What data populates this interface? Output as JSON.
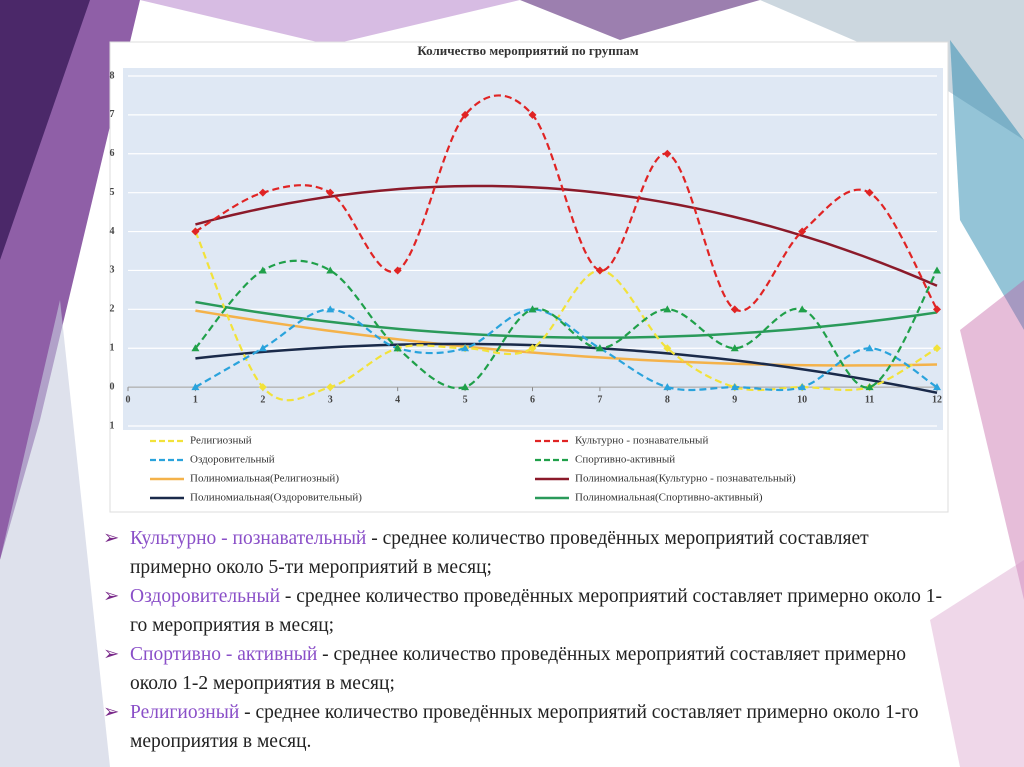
{
  "chart_data": {
    "type": "line",
    "title": "Количество мероприятий по группам",
    "x": [
      1,
      2,
      3,
      4,
      5,
      6,
      7,
      8,
      9,
      10,
      11,
      12
    ],
    "xlim": [
      0,
      12
    ],
    "xticks": [
      0,
      1,
      2,
      3,
      4,
      5,
      6,
      7,
      8,
      9,
      10,
      11,
      12
    ],
    "ylim": [
      -1,
      8
    ],
    "yticks": [
      {
        "value": -1,
        "label": "1"
      },
      0,
      1,
      2,
      3,
      4,
      5,
      6,
      7,
      8
    ],
    "grid": true,
    "legend": "bottom",
    "series": [
      {
        "name": "Религиозный",
        "color": "#f2e23a",
        "marker": "diamond",
        "values": [
          4,
          0,
          0,
          1,
          1,
          1,
          3,
          1,
          0,
          0,
          0,
          1
        ],
        "trendline": {
          "name": "Полиномиальная(Религиозный)",
          "color": "#f4b24a"
        }
      },
      {
        "name": "Культурно - познавательный",
        "color": "#e02424",
        "marker": "diamond",
        "values": [
          4,
          5,
          5,
          3,
          7,
          7,
          3,
          6,
          2,
          4,
          5,
          2
        ],
        "trendline": {
          "name": "Полиномиальная(Культурно - познавательный)",
          "color": "#8b1a2a"
        }
      },
      {
        "name": "Оздоровительный",
        "color": "#2aa3dc",
        "marker": "triangle",
        "values": [
          0,
          1,
          2,
          1,
          1,
          2,
          1,
          0,
          0,
          0,
          1,
          0
        ],
        "trendline": {
          "name": "Полиномиальная(Оздоровительный)",
          "color": "#1a2a4a"
        }
      },
      {
        "name": "Спортивно-активный",
        "color": "#20a04a",
        "marker": "triangle",
        "values": [
          1,
          3,
          3,
          1,
          0,
          2,
          1,
          2,
          1,
          2,
          0,
          3
        ],
        "trendline": {
          "name": "Полиномиальная(Спортивно-активный)",
          "color": "#2a9a5a"
        }
      }
    ]
  },
  "bullets": [
    {
      "name": "Культурно - познавательный",
      "text": " - среднее количество проведённых мероприятий составляет примерно около 5-ти мероприятий в месяц;"
    },
    {
      "name": "Оздоровительный",
      "text": " - среднее количество проведённых мероприятий составляет примерно около 1-го мероприятия в месяц;"
    },
    {
      "name": "Спортивно - активный",
      "text": " - среднее количество проведённых мероприятий составляет примерно около 1-2 мероприятия в месяц;"
    },
    {
      "name": "Религиозный",
      "text": " - среднее количество проведённых мероприятий  составляет примерно около 1-го мероприятия в месяц."
    }
  ]
}
